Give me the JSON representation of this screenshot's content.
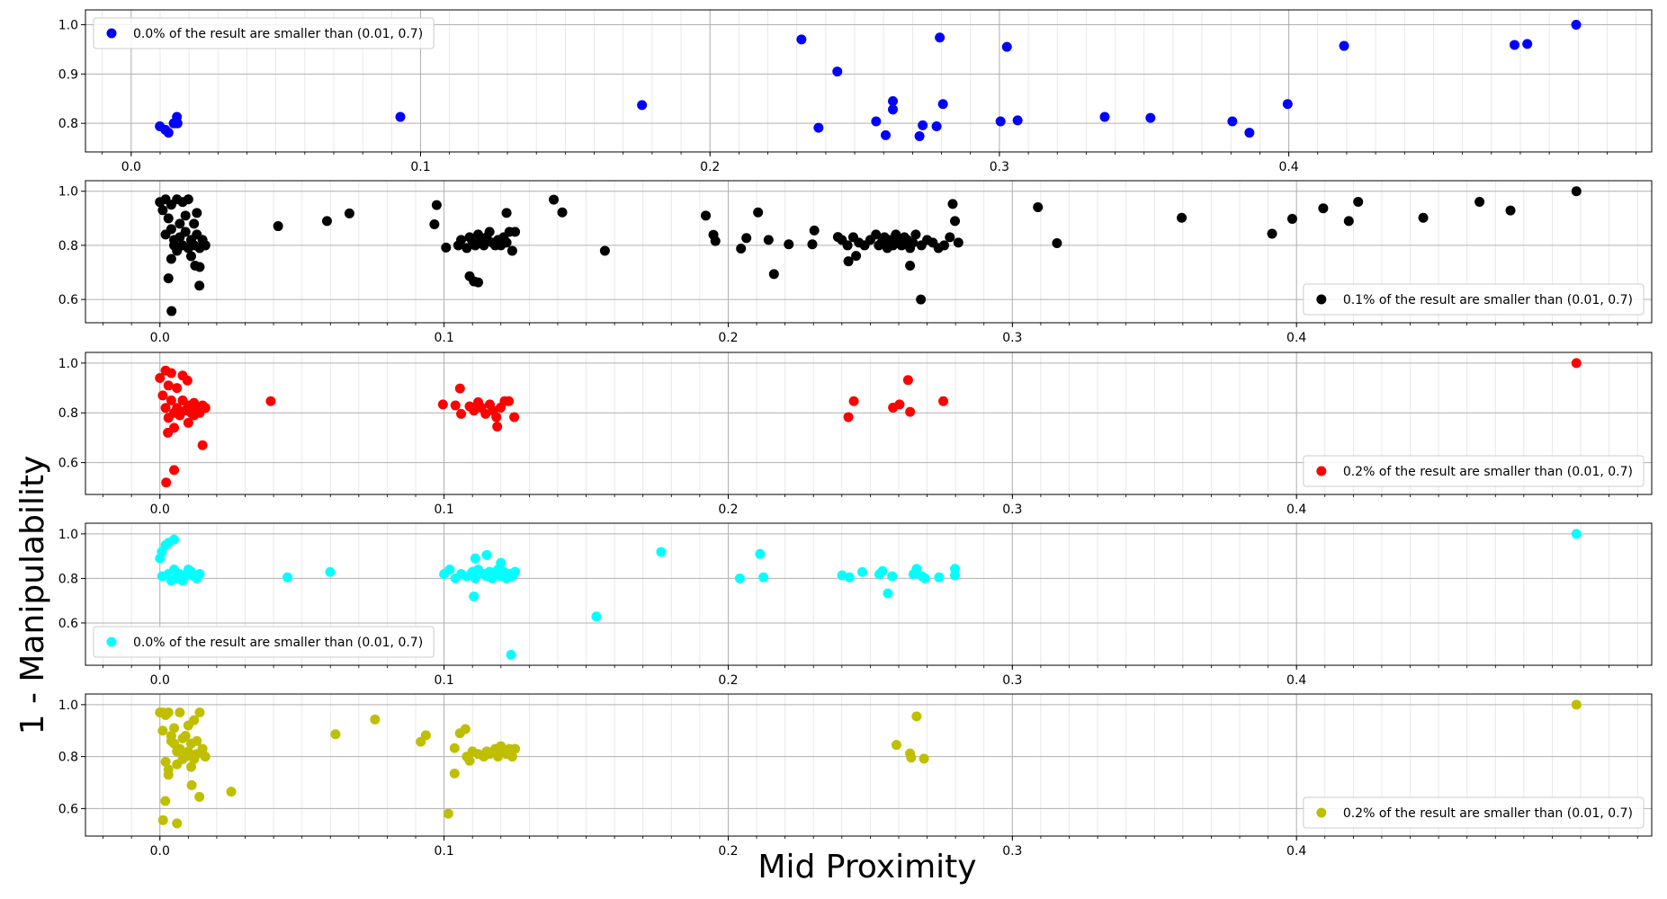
{
  "figure": {
    "xlabel": "Mid Proximity",
    "ylabel": "1 - Manipulability"
  },
  "chart_data": [
    {
      "type": "scatter",
      "xlim": [
        -0.0158,
        0.5254
      ],
      "ylim": [
        0.742,
        1.03
      ],
      "xticks": [
        {
          "value": 0,
          "label": "0.0"
        },
        0.1,
        0.2,
        0.3,
        0.4
      ],
      "yticks": [
        0.8,
        0.9,
        {
          "value": 1,
          "label": "1.0"
        }
      ],
      "grid": true,
      "minor_grid_step": 0.01,
      "legend_loc": "upper left",
      "series": [
        {
          "name": "0.0% of the result are smaller than (0.01, 0.7)",
          "color": "#0000ff",
          "x": [
            0.0099,
            0.0118,
            0.0129,
            0.0147,
            0.0158,
            0.016,
            0.093,
            0.1765,
            0.2316,
            0.2375,
            0.244,
            0.2574,
            0.2607,
            0.2632,
            0.2632,
            0.2724,
            0.2735,
            0.2783,
            0.2794,
            0.2805,
            0.3004,
            0.3026,
            0.3063,
            0.3364,
            0.3522,
            0.3805,
            0.3864,
            0.3996,
            0.4191,
            0.478,
            0.4824,
            0.4993
          ],
          "y": [
            0.794,
            0.787,
            0.781,
            0.8,
            0.813,
            0.8,
            0.813,
            0.837,
            0.97,
            0.791,
            0.905,
            0.804,
            0.776,
            0.845,
            0.828,
            0.774,
            0.796,
            0.794,
            0.974,
            0.839,
            0.804,
            0.955,
            0.806,
            0.813,
            0.811,
            0.804,
            0.781,
            0.839,
            0.957,
            0.959,
            0.961,
            1.0
          ]
        }
      ]
    },
    {
      "type": "scatter",
      "xlim": [
        -0.0262,
        0.525
      ],
      "ylim": [
        0.514,
        1.039
      ],
      "xticks": [
        {
          "value": 0,
          "label": "0.0"
        },
        0.1,
        0.2,
        0.3,
        0.4
      ],
      "yticks": [
        0.6,
        0.8,
        {
          "value": 1,
          "label": "1.0"
        }
      ],
      "grid": true,
      "minor_grid_step": 0.01,
      "legend_loc": "lower right",
      "series": [
        {
          "name": "0.1% of the result are smaller than (0.01, 0.7)",
          "color": "#000000",
          "x": [
            0,
            0.001,
            0.002,
            0.003,
            0.004,
            0.004,
            0.005,
            0.005,
            0.006,
            0.006,
            0.007,
            0.007,
            0.008,
            0.008,
            0.009,
            0.009,
            0.01,
            0.01,
            0.011,
            0.011,
            0.012,
            0.012,
            0.013,
            0.013,
            0.014,
            0.014,
            0.015,
            0.016,
            0.003,
            0.0041,
            0.0139,
            0.0124,
            0.002,
            0.004,
            0.0416,
            0.0588,
            0.0667,
            0.0966,
            0.0974,
            0.1007,
            0.105,
            0.106,
            0.108,
            0.109,
            0.11,
            0.111,
            0.112,
            0.113,
            0.114,
            0.115,
            0.116,
            0.117,
            0.118,
            0.119,
            0.12,
            0.121,
            0.122,
            0.123,
            0.124,
            0.125,
            0.122,
            0.109,
            0.1105,
            0.112,
            0.1386,
            0.1416,
            0.1566,
            0.1921,
            0.1948,
            0.1955,
            0.2045,
            0.2064,
            0.2105,
            0.2142,
            0.2161,
            0.2213,
            0.2296,
            0.2303,
            0.2386,
            0.2423,
            0.245,
            0.24,
            0.242,
            0.244,
            0.246,
            0.248,
            0.25,
            0.252,
            0.253,
            0.254,
            0.255,
            0.256,
            0.257,
            0.258,
            0.259,
            0.26,
            0.261,
            0.262,
            0.263,
            0.264,
            0.265,
            0.266,
            0.268,
            0.27,
            0.272,
            0.274,
            0.276,
            0.278,
            0.281,
            0.264,
            0.2678,
            0.279,
            0.2798,
            0.309,
            0.3157,
            0.3596,
            0.3914,
            0.3985,
            0.4094,
            0.4184,
            0.4217,
            0.4446,
            0.4644,
            0.4753,
            0.4985
          ],
          "y": [
            0.96,
            0.93,
            0.97,
            0.9,
            0.95,
            0.86,
            0.82,
            0.8,
            0.97,
            0.78,
            0.88,
            0.83,
            0.96,
            0.8,
            0.91,
            0.85,
            0.97,
            0.79,
            0.82,
            0.76,
            0.88,
            0.8,
            0.84,
            0.92,
            0.79,
            0.72,
            0.82,
            0.8,
            0.678,
            0.557,
            0.651,
            0.725,
            0.84,
            0.75,
            0.871,
            0.89,
            0.918,
            0.878,
            0.949,
            0.792,
            0.8,
            0.82,
            0.79,
            0.83,
            0.81,
            0.8,
            0.84,
            0.82,
            0.8,
            0.83,
            0.85,
            0.81,
            0.8,
            0.82,
            0.8,
            0.83,
            0.81,
            0.85,
            0.78,
            0.85,
            0.92,
            0.686,
            0.667,
            0.663,
            0.969,
            0.922,
            0.78,
            0.91,
            0.839,
            0.816,
            0.788,
            0.827,
            0.922,
            0.82,
            0.694,
            0.804,
            0.804,
            0.855,
            0.831,
            0.741,
            0.761,
            0.82,
            0.8,
            0.83,
            0.81,
            0.8,
            0.82,
            0.84,
            0.8,
            0.81,
            0.83,
            0.79,
            0.82,
            0.8,
            0.84,
            0.81,
            0.8,
            0.83,
            0.82,
            0.79,
            0.81,
            0.84,
            0.8,
            0.82,
            0.81,
            0.79,
            0.8,
            0.83,
            0.81,
            0.725,
            0.6,
            0.953,
            0.89,
            0.941,
            0.808,
            0.902,
            0.843,
            0.898,
            0.937,
            0.89,
            0.961,
            0.902,
            0.961,
            0.929,
            1.0
          ]
        }
      ]
    },
    {
      "type": "scatter",
      "xlim": [
        -0.0262,
        0.525
      ],
      "ylim": [
        0.472,
        1.043
      ],
      "xticks": [
        {
          "value": 0,
          "label": "0.0"
        },
        0.1,
        0.2,
        0.3,
        0.4
      ],
      "yticks": [
        0.6,
        0.8,
        {
          "value": 1,
          "label": "1.0"
        }
      ],
      "grid": true,
      "minor_grid_step": 0.01,
      "legend_loc": "lower right",
      "series": [
        {
          "name": "0.2% of the result are smaller than (0.01, 0.7)",
          "color": "#ff0000",
          "x": [
            0,
            0.001,
            0.002,
            0.002,
            0.003,
            0.003,
            0.004,
            0.004,
            0.005,
            0.005,
            0.006,
            0.006,
            0.007,
            0.008,
            0.008,
            0.009,
            0.01,
            0.01,
            0.011,
            0.012,
            0.012,
            0.013,
            0.014,
            0.015,
            0.016,
            0.0028,
            0.0097,
            0.015,
            0.005,
            0.0022,
            0.039,
            0.0996,
            0.104,
            0.1056,
            0.106,
            0.109,
            0.1105,
            0.112,
            0.1131,
            0.1146,
            0.1161,
            0.1172,
            0.1184,
            0.1199,
            0.1213,
            0.1228,
            0.1247,
            0.1187,
            0.2423,
            0.2442,
            0.258,
            0.2603,
            0.2633,
            0.264,
            0.2757,
            0.4985
          ],
          "y": [
            0.94,
            0.87,
            0.97,
            0.82,
            0.91,
            0.78,
            0.96,
            0.85,
            0.8,
            0.74,
            0.9,
            0.82,
            0.79,
            0.85,
            0.95,
            0.81,
            0.83,
            0.76,
            0.8,
            0.84,
            0.79,
            0.82,
            0.8,
            0.83,
            0.82,
            0.72,
            0.93,
            0.67,
            0.57,
            0.52,
            0.847,
            0.834,
            0.83,
            0.898,
            0.796,
            0.826,
            0.809,
            0.843,
            0.821,
            0.796,
            0.834,
            0.809,
            0.783,
            0.821,
            0.847,
            0.847,
            0.783,
            0.745,
            0.783,
            0.847,
            0.821,
            0.834,
            0.932,
            0.804,
            0.847,
            1.0
          ]
        }
      ]
    },
    {
      "type": "scatter",
      "xlim": [
        -0.0262,
        0.525
      ],
      "ylim": [
        0.41,
        1.048
      ],
      "xticks": [
        {
          "value": 0,
          "label": "0.0"
        },
        0.1,
        0.2,
        0.3,
        0.4
      ],
      "yticks": [
        0.6,
        0.8,
        {
          "value": 1,
          "label": "1.0"
        }
      ],
      "grid": true,
      "minor_grid_step": 0.01,
      "legend_loc": "lower left",
      "series": [
        {
          "name": "0.0% of the result are smaller than (0.01, 0.7)",
          "color": "#00ffff",
          "x": [
            0,
            0.0007,
            0.002,
            0.003,
            0.005,
            0.0008,
            0.003,
            0.004,
            0.005,
            0.006,
            0.007,
            0.008,
            0.009,
            0.01,
            0.011,
            0.012,
            0.013,
            0.014,
            0.0449,
            0.0599,
            0.1,
            0.102,
            0.104,
            0.106,
            0.108,
            0.11,
            0.111,
            0.112,
            0.114,
            0.115,
            0.116,
            0.117,
            0.118,
            0.119,
            0.12,
            0.121,
            0.122,
            0.123,
            0.124,
            0.125,
            0.111,
            0.115,
            0.12,
            0.1105,
            0.1236,
            0.1536,
            0.1764,
            0.2041,
            0.2112,
            0.2124,
            0.2401,
            0.2427,
            0.2472,
            0.2532,
            0.2543,
            0.2562,
            0.2577,
            0.2652,
            0.2663,
            0.2682,
            0.2693,
            0.2742,
            0.2798,
            0.2798,
            0.4985
          ],
          "y": [
            0.89,
            0.92,
            0.95,
            0.96,
            0.975,
            0.81,
            0.82,
            0.79,
            0.84,
            0.8,
            0.82,
            0.79,
            0.81,
            0.84,
            0.83,
            0.81,
            0.8,
            0.82,
            0.805,
            0.829,
            0.82,
            0.84,
            0.8,
            0.82,
            0.81,
            0.83,
            0.8,
            0.84,
            0.82,
            0.81,
            0.83,
            0.8,
            0.82,
            0.84,
            0.81,
            0.83,
            0.8,
            0.82,
            0.81,
            0.83,
            0.89,
            0.905,
            0.87,
            0.719,
            0.457,
            0.629,
            0.919,
            0.8,
            0.91,
            0.805,
            0.814,
            0.805,
            0.829,
            0.819,
            0.833,
            0.733,
            0.81,
            0.819,
            0.843,
            0.81,
            0.8,
            0.805,
            0.843,
            0.814,
            1.0
          ]
        }
      ]
    },
    {
      "type": "scatter",
      "xlim": [
        -0.0262,
        0.525
      ],
      "ylim": [
        0.494,
        1.041
      ],
      "xticks": [
        {
          "value": 0,
          "label": "0.0"
        },
        0.1,
        0.2,
        0.3,
        0.4
      ],
      "yticks": [
        0.6,
        0.8,
        {
          "value": 1,
          "label": "1.0"
        }
      ],
      "grid": true,
      "minor_grid_step": 0.01,
      "legend_loc": "lower right",
      "series": [
        {
          "name": "0.2% of the result are smaller than (0.01, 0.7)",
          "color": "#bfbf00",
          "x": [
            0,
            0.001,
            0.002,
            0.003,
            0.004,
            0.005,
            0.006,
            0.007,
            0.008,
            0.009,
            0.01,
            0.011,
            0.012,
            0.013,
            0.014,
            0.015,
            0.016,
            0.001,
            0.002,
            0.003,
            0.004,
            0.005,
            0.006,
            0.007,
            0.008,
            0.009,
            0.01,
            0.011,
            0.012,
            0.013,
            0.003,
            0.0112,
            0.0011,
            0.0019,
            0.006,
            0.0139,
            0.0251,
            0.0618,
            0.0757,
            0.0918,
            0.0936,
            0.1015,
            0.1037,
            0.1037,
            0.1056,
            0.1075,
            0.109,
            0.108,
            0.11,
            0.112,
            0.114,
            0.115,
            0.116,
            0.118,
            0.119,
            0.12,
            0.121,
            0.122,
            0.123,
            0.124,
            0.125,
            0.2592,
            0.264,
            0.2644,
            0.2663,
            0.2689,
            0.4985
          ],
          "y": [
            0.97,
            0.97,
            0.96,
            0.97,
            0.88,
            0.85,
            0.82,
            0.97,
            0.87,
            0.8,
            0.92,
            0.85,
            0.94,
            0.81,
            0.97,
            0.83,
            0.8,
            0.9,
            0.78,
            0.75,
            0.86,
            0.91,
            0.77,
            0.83,
            0.79,
            0.88,
            0.82,
            0.76,
            0.79,
            0.86,
            0.73,
            0.69,
            0.555,
            0.629,
            0.543,
            0.645,
            0.665,
            0.886,
            0.943,
            0.857,
            0.882,
            0.58,
            0.735,
            0.833,
            0.89,
            0.906,
            0.784,
            0.8,
            0.82,
            0.81,
            0.8,
            0.82,
            0.81,
            0.83,
            0.8,
            0.84,
            0.82,
            0.81,
            0.83,
            0.8,
            0.83,
            0.845,
            0.812,
            0.796,
            0.955,
            0.792,
            1.0
          ]
        }
      ]
    }
  ]
}
